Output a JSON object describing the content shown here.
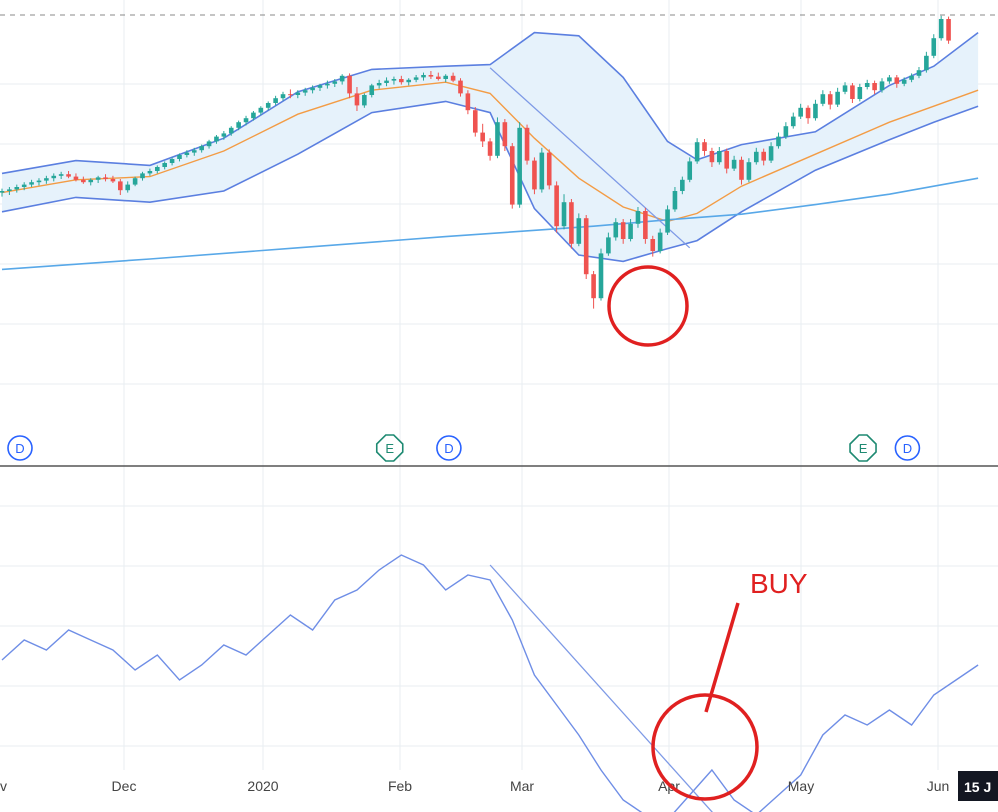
{
  "chart_data": {
    "type": "candlestick",
    "colors": {
      "up": "#26a69a",
      "down": "#ef5350",
      "bollinger": "#5b7fe0",
      "bollinger_fill": "#e6f2fb",
      "ma_short": "#f39c45",
      "ma_long": "#58a8e8",
      "indicator": "#6f8ee6",
      "trendline": "#7e9ae6",
      "annotation": "#e02020",
      "grid": "#e9edf2",
      "axis_text": "#444444"
    },
    "x_axis": {
      "labels": [
        "Dec",
        "2020",
        "Feb",
        "Mar",
        "Apr",
        "May",
        "Jun"
      ],
      "first_label_partial": "v",
      "last_label_partial": "15 J"
    },
    "price": {
      "ylim": [
        40,
        100
      ],
      "reference_level": 96,
      "candles_ohlc": [
        [
          73.8,
          74.3,
          73.3,
          74.0
        ],
        [
          74.0,
          74.5,
          73.5,
          74.2
        ],
        [
          74.2,
          74.8,
          73.8,
          74.5
        ],
        [
          74.5,
          75.1,
          74.1,
          74.8
        ],
        [
          74.8,
          75.4,
          74.5,
          75.1
        ],
        [
          75.1,
          75.6,
          74.7,
          75.3
        ],
        [
          75.3,
          75.9,
          74.9,
          75.6
        ],
        [
          75.6,
          76.2,
          75.2,
          75.9
        ],
        [
          75.9,
          76.4,
          75.5,
          76.1
        ],
        [
          76.1,
          76.5,
          75.6,
          75.8
        ],
        [
          75.8,
          76.2,
          75.2,
          75.4
        ],
        [
          75.4,
          75.8,
          74.9,
          75.1
        ],
        [
          75.1,
          75.6,
          74.7,
          75.4
        ],
        [
          75.4,
          75.9,
          75.0,
          75.7
        ],
        [
          75.7,
          76.1,
          75.2,
          75.5
        ],
        [
          75.5,
          75.9,
          75.0,
          75.2
        ],
        [
          75.2,
          75.5,
          73.5,
          74.1
        ],
        [
          74.1,
          75.2,
          73.8,
          74.8
        ],
        [
          74.8,
          75.8,
          74.6,
          75.6
        ],
        [
          75.6,
          76.4,
          75.3,
          76.2
        ],
        [
          76.2,
          76.8,
          75.9,
          76.5
        ],
        [
          76.5,
          77.2,
          76.2,
          77.0
        ],
        [
          77.0,
          77.7,
          76.7,
          77.5
        ],
        [
          77.5,
          78.2,
          77.2,
          78.0
        ],
        [
          78.0,
          78.7,
          77.7,
          78.5
        ],
        [
          78.5,
          79.1,
          78.2,
          78.8
        ],
        [
          78.8,
          79.4,
          78.4,
          79.1
        ],
        [
          79.1,
          79.8,
          78.8,
          79.6
        ],
        [
          79.6,
          80.4,
          79.3,
          80.2
        ],
        [
          80.2,
          81.0,
          79.9,
          80.8
        ],
        [
          80.8,
          81.5,
          80.4,
          81.2
        ],
        [
          81.2,
          82.1,
          80.9,
          81.9
        ],
        [
          81.9,
          82.8,
          81.6,
          82.6
        ],
        [
          82.6,
          83.4,
          82.2,
          83.1
        ],
        [
          83.1,
          84.0,
          82.8,
          83.8
        ],
        [
          83.8,
          84.6,
          83.5,
          84.4
        ],
        [
          84.4,
          85.2,
          84.1,
          85.0
        ],
        [
          85.0,
          85.9,
          84.7,
          85.6
        ],
        [
          85.6,
          86.4,
          85.3,
          86.1
        ],
        [
          86.1,
          86.7,
          85.6,
          86.0
        ],
        [
          86.0,
          86.6,
          85.6,
          86.3
        ],
        [
          86.3,
          86.9,
          85.9,
          86.6
        ],
        [
          86.6,
          87.2,
          86.2,
          86.9
        ],
        [
          86.9,
          87.4,
          86.5,
          87.2
        ],
        [
          87.2,
          87.8,
          86.8,
          87.4
        ],
        [
          87.4,
          88.0,
          87.0,
          87.7
        ],
        [
          87.7,
          88.6,
          87.3,
          88.4
        ],
        [
          88.4,
          88.7,
          85.6,
          86.2
        ],
        [
          86.2,
          87.0,
          84.0,
          84.7
        ],
        [
          84.7,
          86.2,
          84.4,
          86.0
        ],
        [
          86.0,
          87.4,
          85.7,
          87.2
        ],
        [
          87.2,
          87.9,
          86.8,
          87.5
        ],
        [
          87.5,
          88.2,
          87.1,
          87.8
        ],
        [
          87.8,
          88.3,
          87.3,
          88.0
        ],
        [
          88.0,
          88.4,
          87.3,
          87.6
        ],
        [
          87.6,
          88.1,
          87.2,
          87.9
        ],
        [
          87.9,
          88.5,
          87.6,
          88.2
        ],
        [
          88.2,
          88.8,
          87.8,
          88.5
        ],
        [
          88.5,
          89.0,
          88.0,
          88.3
        ],
        [
          88.3,
          88.8,
          87.8,
          88.0
        ],
        [
          88.0,
          88.6,
          87.6,
          88.4
        ],
        [
          88.4,
          88.8,
          87.6,
          87.8
        ],
        [
          87.8,
          88.1,
          85.8,
          86.2
        ],
        [
          86.2,
          86.6,
          83.6,
          84.1
        ],
        [
          84.1,
          84.5,
          80.8,
          81.3
        ],
        [
          81.3,
          82.4,
          79.5,
          80.2
        ],
        [
          80.2,
          80.6,
          77.8,
          78.4
        ],
        [
          78.4,
          83.2,
          78.1,
          82.6
        ],
        [
          82.6,
          83.0,
          79.0,
          79.6
        ],
        [
          79.6,
          80.0,
          71.8,
          72.3
        ],
        [
          72.3,
          82.6,
          71.9,
          81.9
        ],
        [
          81.9,
          82.3,
          77.3,
          77.8
        ],
        [
          77.8,
          78.2,
          73.6,
          74.2
        ],
        [
          74.2,
          79.4,
          73.8,
          78.8
        ],
        [
          78.8,
          79.2,
          74.2,
          74.7
        ],
        [
          74.7,
          75.2,
          68.8,
          69.6
        ],
        [
          69.6,
          73.6,
          69.2,
          72.6
        ],
        [
          72.6,
          73.0,
          66.8,
          67.4
        ],
        [
          67.4,
          71.2,
          67.1,
          70.6
        ],
        [
          70.6,
          71.0,
          63.0,
          63.6
        ],
        [
          63.6,
          64.0,
          59.3,
          60.6
        ],
        [
          60.6,
          66.8,
          60.3,
          66.2
        ],
        [
          66.2,
          68.8,
          65.9,
          68.2
        ],
        [
          68.2,
          70.6,
          67.8,
          70.1
        ],
        [
          70.1,
          70.5,
          67.4,
          68.0
        ],
        [
          68.0,
          70.5,
          67.7,
          69.9
        ],
        [
          69.9,
          72.0,
          69.4,
          71.5
        ],
        [
          71.5,
          71.9,
          67.4,
          68.0
        ],
        [
          68.0,
          68.4,
          65.8,
          66.5
        ],
        [
          66.5,
          69.3,
          66.2,
          68.8
        ],
        [
          68.8,
          72.2,
          68.5,
          71.7
        ],
        [
          71.7,
          74.5,
          71.4,
          74.0
        ],
        [
          74.0,
          75.8,
          73.6,
          75.4
        ],
        [
          75.4,
          78.2,
          75.1,
          77.7
        ],
        [
          77.7,
          80.6,
          77.4,
          80.1
        ],
        [
          80.1,
          80.5,
          78.4,
          79.0
        ],
        [
          79.0,
          79.4,
          77.0,
          77.6
        ],
        [
          77.6,
          79.5,
          77.3,
          79.0
        ],
        [
          79.0,
          79.3,
          76.2,
          76.8
        ],
        [
          76.8,
          78.4,
          76.5,
          77.9
        ],
        [
          77.9,
          78.3,
          74.8,
          75.4
        ],
        [
          75.4,
          78.1,
          75.1,
          77.6
        ],
        [
          77.6,
          79.4,
          77.3,
          78.9
        ],
        [
          78.9,
          79.3,
          77.2,
          77.8
        ],
        [
          77.8,
          80.1,
          77.5,
          79.6
        ],
        [
          79.6,
          81.3,
          79.3,
          80.8
        ],
        [
          80.8,
          82.6,
          80.5,
          82.1
        ],
        [
          82.1,
          83.8,
          81.8,
          83.3
        ],
        [
          83.3,
          84.9,
          83.0,
          84.4
        ],
        [
          84.4,
          84.7,
          82.4,
          83.1
        ],
        [
          83.1,
          85.4,
          82.8,
          84.9
        ],
        [
          84.9,
          86.6,
          84.6,
          86.1
        ],
        [
          86.1,
          86.5,
          84.2,
          84.8
        ],
        [
          84.8,
          86.9,
          84.5,
          86.4
        ],
        [
          86.4,
          87.6,
          86.1,
          87.2
        ],
        [
          87.2,
          87.5,
          85.0,
          85.5
        ],
        [
          85.5,
          87.4,
          85.2,
          87.0
        ],
        [
          87.0,
          87.9,
          86.7,
          87.5
        ],
        [
          87.5,
          87.8,
          86.1,
          86.6
        ],
        [
          86.6,
          88.1,
          86.3,
          87.7
        ],
        [
          87.7,
          88.5,
          87.4,
          88.2
        ],
        [
          88.2,
          88.5,
          86.9,
          87.4
        ],
        [
          87.4,
          88.2,
          87.1,
          87.9
        ],
        [
          87.9,
          88.7,
          87.6,
          88.4
        ],
        [
          88.4,
          89.5,
          88.1,
          89.1
        ],
        [
          89.1,
          91.4,
          88.8,
          90.9
        ],
        [
          90.9,
          93.6,
          90.6,
          93.1
        ],
        [
          93.1,
          95.9,
          92.8,
          95.5
        ],
        [
          95.5,
          95.8,
          92.4,
          92.8
        ]
      ],
      "bollinger_upper": [
        [
          0,
          76.2
        ],
        [
          10,
          77.8
        ],
        [
          20,
          77.2
        ],
        [
          30,
          80.6
        ],
        [
          40,
          86.4
        ],
        [
          50,
          89.2
        ],
        [
          60,
          89.6
        ],
        [
          66,
          89.8
        ],
        [
          72,
          93.8
        ],
        [
          78,
          93.4
        ],
        [
          84,
          88.2
        ],
        [
          90,
          80.2
        ],
        [
          94,
          77.9
        ],
        [
          100,
          79.8
        ],
        [
          110,
          81.4
        ],
        [
          120,
          87.2
        ],
        [
          126,
          89.6
        ],
        [
          132,
          93.8
        ]
      ],
      "bollinger_lower": [
        [
          0,
          71.4
        ],
        [
          10,
          73.2
        ],
        [
          20,
          72.6
        ],
        [
          30,
          74.0
        ],
        [
          40,
          78.6
        ],
        [
          50,
          83.8
        ],
        [
          60,
          85.2
        ],
        [
          66,
          83.8
        ],
        [
          72,
          71.8
        ],
        [
          78,
          66.0
        ],
        [
          84,
          65.2
        ],
        [
          90,
          66.8
        ],
        [
          94,
          67.8
        ],
        [
          100,
          71.4
        ],
        [
          110,
          76.6
        ],
        [
          120,
          80.4
        ],
        [
          126,
          82.6
        ],
        [
          132,
          84.6
        ]
      ],
      "ma_short": [
        [
          0,
          73.8
        ],
        [
          10,
          75.4
        ],
        [
          20,
          75.8
        ],
        [
          30,
          79.0
        ],
        [
          40,
          83.6
        ],
        [
          50,
          86.6
        ],
        [
          60,
          87.6
        ],
        [
          66,
          86.2
        ],
        [
          72,
          80.6
        ],
        [
          78,
          75.6
        ],
        [
          84,
          72.0
        ],
        [
          90,
          70.2
        ],
        [
          94,
          71.2
        ],
        [
          100,
          74.6
        ],
        [
          110,
          78.6
        ],
        [
          120,
          82.6
        ],
        [
          126,
          84.6
        ],
        [
          132,
          86.6
        ]
      ],
      "ma_long": [
        [
          0,
          64.2
        ],
        [
          20,
          65.5
        ],
        [
          40,
          66.9
        ],
        [
          60,
          68.3
        ],
        [
          80,
          69.6
        ],
        [
          90,
          70.4
        ],
        [
          100,
          71.1
        ],
        [
          110,
          72.3
        ],
        [
          120,
          73.6
        ],
        [
          132,
          75.6
        ]
      ],
      "trendline": [
        [
          66,
          89.4
        ],
        [
          93,
          66.9
        ]
      ],
      "event_markers": [
        {
          "index": 0,
          "label": "D"
        },
        {
          "index": 50,
          "label": "E"
        },
        {
          "index": 58,
          "label": "D"
        },
        {
          "index": 114,
          "label": "E"
        },
        {
          "index": 120,
          "label": "D"
        }
      ]
    },
    "indicator": {
      "ylim": [
        20,
        100
      ],
      "line": [
        [
          0,
          62
        ],
        [
          3,
          66
        ],
        [
          6,
          64
        ],
        [
          9,
          68
        ],
        [
          12,
          66
        ],
        [
          15,
          64
        ],
        [
          18,
          60
        ],
        [
          21,
          63
        ],
        [
          24,
          58
        ],
        [
          27,
          61
        ],
        [
          30,
          65
        ],
        [
          33,
          63
        ],
        [
          36,
          67
        ],
        [
          39,
          71
        ],
        [
          42,
          68
        ],
        [
          45,
          74
        ],
        [
          48,
          76
        ],
        [
          51,
          80
        ],
        [
          54,
          83
        ],
        [
          57,
          81
        ],
        [
          60,
          76
        ],
        [
          63,
          79
        ],
        [
          66,
          78
        ],
        [
          69,
          70
        ],
        [
          72,
          59
        ],
        [
          75,
          53
        ],
        [
          78,
          47
        ],
        [
          81,
          40
        ],
        [
          84,
          34
        ],
        [
          87,
          31
        ],
        [
          90,
          30
        ],
        [
          93,
          35
        ],
        [
          96,
          40
        ],
        [
          99,
          34
        ],
        [
          102,
          31
        ],
        [
          105,
          35
        ],
        [
          108,
          39
        ],
        [
          111,
          47
        ],
        [
          114,
          51
        ],
        [
          117,
          49
        ],
        [
          120,
          52
        ],
        [
          123,
          49
        ],
        [
          126,
          55
        ],
        [
          129,
          58
        ],
        [
          132,
          61
        ]
      ],
      "trendline": [
        [
          66,
          81
        ],
        [
          97,
          30
        ]
      ]
    },
    "annotations": {
      "label": "BUY"
    }
  }
}
